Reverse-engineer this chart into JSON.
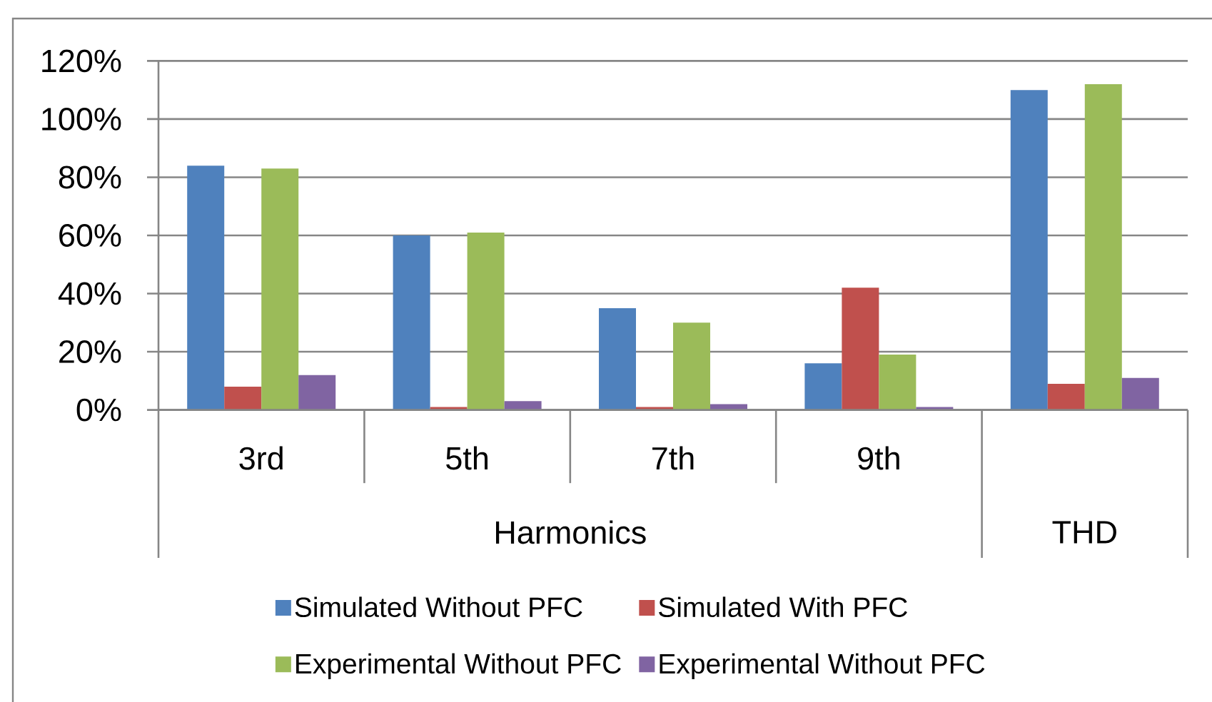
{
  "chart_data": {
    "type": "bar",
    "categories": [
      "3rd",
      "5th",
      "7th",
      "9th",
      null
    ],
    "series": [
      {
        "name": "Simulated Without PFC",
        "color": "#4f81bd",
        "values": [
          84,
          60,
          35,
          16,
          110
        ]
      },
      {
        "name": "Simulated With PFC",
        "color": "#c0504d",
        "values": [
          8,
          1,
          1,
          42,
          9
        ]
      },
      {
        "name": "Experimental Without PFC",
        "color": "#9bbb59",
        "values": [
          83,
          61,
          30,
          19,
          112
        ]
      },
      {
        "name": "Experimental Without PFC",
        "color": "#8064a2",
        "values": [
          12,
          3,
          2,
          1,
          11
        ]
      }
    ],
    "ylim": [
      0,
      120
    ],
    "yticks": [
      {
        "value": 0,
        "label": "0%"
      },
      {
        "value": 20,
        "label": "20%"
      },
      {
        "value": 40,
        "label": "40%"
      },
      {
        "value": 60,
        "label": "60%"
      },
      {
        "value": 80,
        "label": "80%"
      },
      {
        "value": 100,
        "label": "100%"
      },
      {
        "value": 120,
        "label": "120%"
      }
    ],
    "grid": "y",
    "legend": "bottom",
    "annotations": [
      "Harmonics",
      "THD"
    ]
  }
}
